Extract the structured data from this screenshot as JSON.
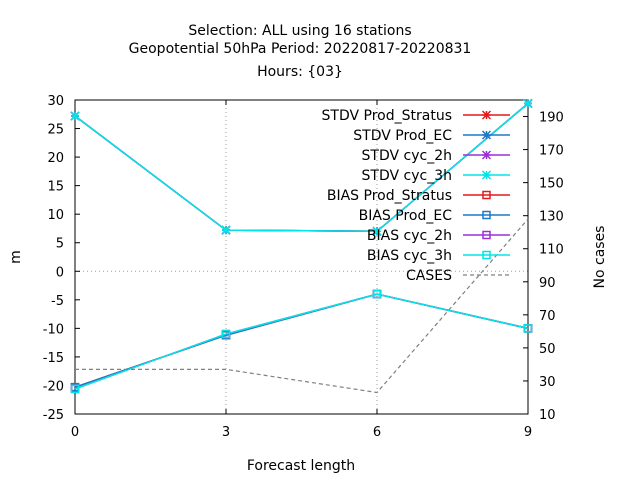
{
  "title": {
    "line1": "Selection: ALL using    16 stations",
    "line2": "Geopotential 50hPa   Period: 20220817-20220831",
    "line3": "Hours: {03}"
  },
  "chart_data": {
    "type": "line",
    "xlabel": "Forecast length",
    "ylabel": "m",
    "y2label": "No cases",
    "x": [
      0,
      3,
      6,
      9
    ],
    "xlim": [
      0,
      9
    ],
    "ylim": [
      -25,
      30
    ],
    "y2lim": [
      10,
      200
    ],
    "xticks": [
      "0",
      "3",
      "6",
      "9"
    ],
    "yticks": [
      "30",
      "25",
      "20",
      "15",
      "10",
      "5",
      "0",
      "-5",
      "-10",
      "-15",
      "-20",
      "-25"
    ],
    "y2ticks": [
      "190",
      "170",
      "150",
      "130",
      "110",
      "90",
      "70",
      "50",
      "30",
      "10"
    ],
    "grid": true,
    "legend_position": "top-right",
    "series": [
      {
        "name": "STDV Prod_Stratus",
        "axis": "y",
        "values": [
          27.2,
          7.2,
          7.0,
          29.4
        ],
        "color": "#e41a1c",
        "marker": "x"
      },
      {
        "name": "STDV Prod_EC",
        "axis": "y",
        "values": [
          27.2,
          7.2,
          7.0,
          29.4
        ],
        "color": "#1f78c8",
        "marker": "x"
      },
      {
        "name": "STDV cyc_2h",
        "axis": "y",
        "values": [
          27.2,
          7.2,
          7.0,
          29.4
        ],
        "color": "#9b30d9",
        "marker": "x"
      },
      {
        "name": "STDV cyc_3h",
        "axis": "y",
        "values": [
          27.2,
          7.2,
          7.0,
          29.4
        ],
        "color": "#00e5e5",
        "marker": "x"
      },
      {
        "name": "BIAS Prod_Stratus",
        "axis": "y",
        "values": [
          -20.3,
          -11.2,
          -4.0,
          -10.0
        ],
        "color": "#e41a1c",
        "marker": "square"
      },
      {
        "name": "BIAS Prod_EC",
        "axis": "y",
        "values": [
          -20.3,
          -11.2,
          -4.0,
          -10.0
        ],
        "color": "#1f78c8",
        "marker": "square"
      },
      {
        "name": "BIAS cyc_2h",
        "axis": "y",
        "values": [
          -20.6,
          -11.0,
          -4.0,
          -10.0
        ],
        "color": "#9b30d9",
        "marker": "square"
      },
      {
        "name": "BIAS cyc_3h",
        "axis": "y",
        "values": [
          -20.6,
          -11.0,
          -4.0,
          -10.0
        ],
        "color": "#00e5e5",
        "marker": "square"
      },
      {
        "name": "CASES",
        "axis": "y2",
        "values": [
          37,
          37,
          23,
          128
        ],
        "color": "#808080",
        "marker": "none",
        "dash": true
      }
    ]
  }
}
